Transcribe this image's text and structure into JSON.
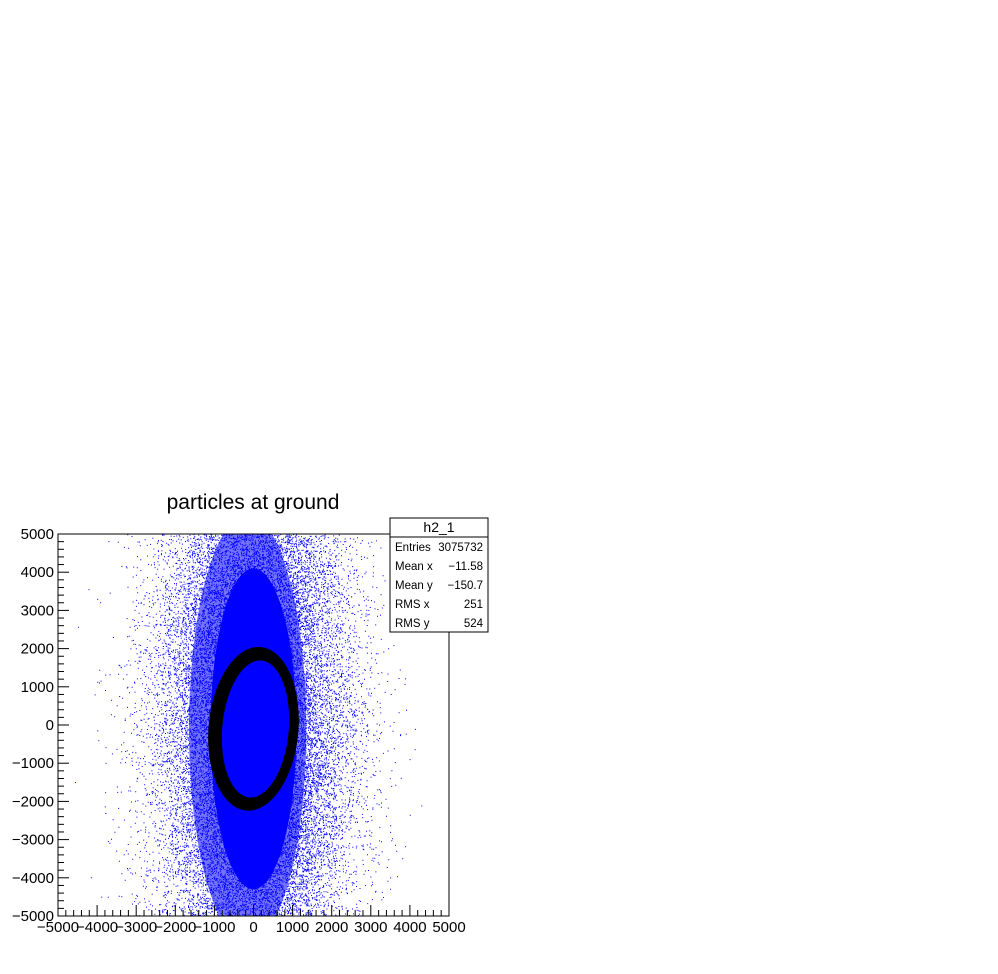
{
  "chart_data": {
    "type": "scatter",
    "title": "particles at ground",
    "xlabel": "",
    "ylabel": "",
    "xlim": [
      -5000,
      5000
    ],
    "ylim": [
      -5000,
      5000
    ],
    "x_ticks": [
      -5000,
      -4000,
      -3000,
      -2000,
      -1000,
      0,
      1000,
      2000,
      3000,
      4000,
      5000
    ],
    "y_ticks": [
      -5000,
      -4000,
      -3000,
      -2000,
      -1000,
      0,
      1000,
      2000,
      3000,
      4000,
      5000
    ],
    "grid": false,
    "point_color": "#0000ff",
    "ring_color": "#000000",
    "ring": {
      "center_x": 0,
      "center_y": -100,
      "outer_semi_x": 1150,
      "outer_semi_y": 2150,
      "inner_semi_x": 850,
      "inner_semi_y": 1800,
      "rotation_deg": 5
    },
    "distribution": {
      "core_semi_x": 2100,
      "core_semi_y": 7000
    }
  },
  "stats_box": {
    "title": "h2_1",
    "rows": [
      {
        "label": "Entries",
        "value": "3075732"
      },
      {
        "label": "Mean x",
        "value": "−11.58"
      },
      {
        "label": "Mean y",
        "value": "−150.7"
      },
      {
        "label": "RMS x",
        "value": "251"
      },
      {
        "label": "RMS y",
        "value": "524"
      }
    ]
  }
}
